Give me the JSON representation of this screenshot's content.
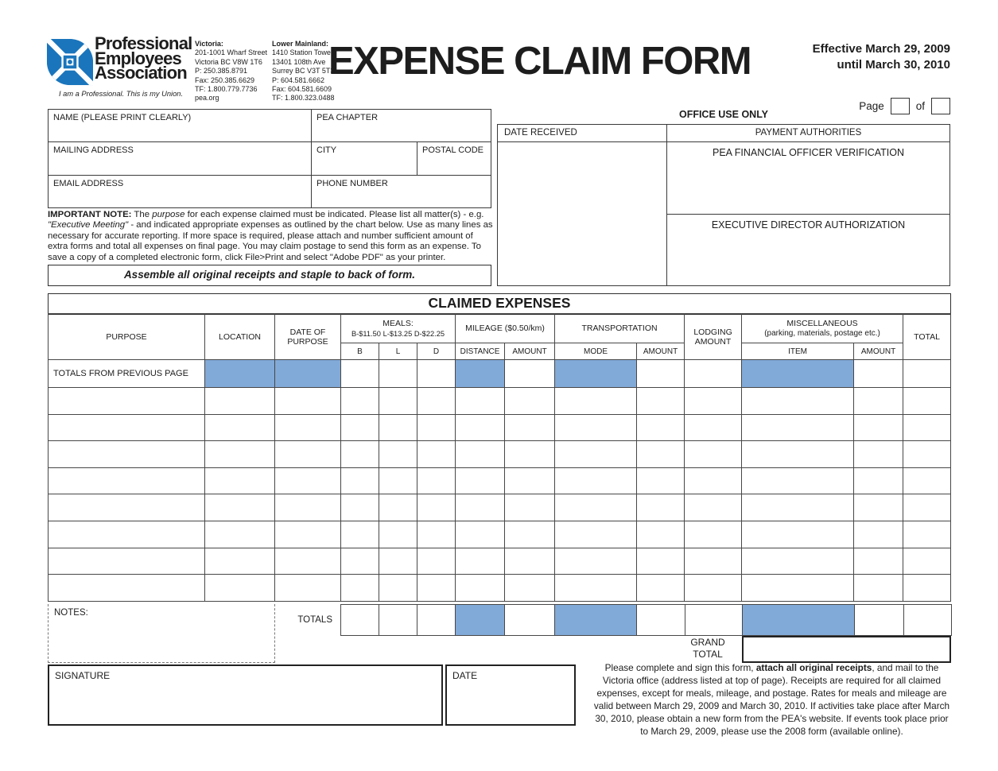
{
  "colors": {
    "cell_blue": "#82aad8",
    "brand_blue": "#1a75bc"
  },
  "logo": {
    "org_lines": [
      "Professional",
      "Employees",
      "Association"
    ],
    "tagline": "I am a Professional. This is my Union."
  },
  "contacts": {
    "victoria": {
      "title": "Victoria:",
      "lines": [
        "201-1001 Wharf Street",
        "Victoria BC V8W 1T6",
        "P: 250.385.8791",
        "Fax: 250.385.6629",
        "TF: 1.800.779.7736",
        "pea.org"
      ]
    },
    "lower_mainland": {
      "title": "Lower Mainland:",
      "lines": [
        "1410 Station Tower",
        "13401 108th Ave",
        "Surrey BC V3T 5T3",
        "P: 604.581.6662",
        "Fax: 604.581.6609",
        "TF: 1.800.323.0488"
      ]
    }
  },
  "header": {
    "title": "EXPENSE CLAIM FORM",
    "effective_line1": "Effective March 29, 2009",
    "effective_line2": "until March 30, 2010",
    "page_label": "Page",
    "of_label": "of"
  },
  "claimant": {
    "name": "NAME (PLEASE PRINT CLEARLY)",
    "pea_chapter": "PEA CHAPTER",
    "mailing_address": "MAILING ADDRESS",
    "city": "CITY",
    "postal_code": "POSTAL CODE",
    "email": "EMAIL ADDRESS",
    "phone": "PHONE NUMBER"
  },
  "office": {
    "title": "OFFICE USE ONLY",
    "date_received": "DATE RECEIVED",
    "payment_authorities": "PAYMENT AUTHORITIES",
    "financial_officer": "PEA FINANCIAL OFFICER VERIFICATION",
    "executive_director": "EXECUTIVE DIRECTOR AUTHORIZATION"
  },
  "note": {
    "b1": "IMPORTANT NOTE:",
    "t1": " The ",
    "i1": "purpose",
    "t2": " for each expense claimed must be indicated. Please list all matter(s) - e.g. ",
    "i2": "\"Executive Meeting\"",
    "t3": " - and indicated appropriate expenses as outlined by the chart below. Use as many lines as necessary for accurate reporting. If more space is required, please attach and number sufficient amount of extra forms and total all expenses on final page. You may claim postage to send this form as an expense. To save a copy of a completed electronic form, click File>Print and select \"Adobe PDF\" as your printer."
  },
  "assemble_notice": "Assemble all original receipts and staple to back of form.",
  "table": {
    "title": "CLAIMED EXPENSES",
    "col_purpose": "PURPOSE",
    "col_location": "LOCATION",
    "col_date": "DATE OF PURPOSE",
    "meals_line1": "MEALS:",
    "meals_line2": "B-$11.50 L-$13.25 D-$22.25",
    "col_mileage": "MILEAGE ($0.50/km)",
    "col_transportation": "TRANSPORTATION",
    "col_lodging": "LODGING AMOUNT",
    "misc_line1": "MISCELLANEOUS",
    "misc_line2": "(parking, materials, postage etc.)",
    "col_total": "TOTAL",
    "sub": {
      "b": "B",
      "l": "L",
      "d": "D",
      "distance": "DISTANCE",
      "amount": "AMOUNT",
      "mode": "MODE",
      "item": "ITEM"
    },
    "totals_prev_label": "TOTALS FROM PREVIOUS PAGE",
    "empty_row_count": 8,
    "notes_label": "NOTES:",
    "totals_label": "TOTALS",
    "grand_total_label": "GRAND TOTAL"
  },
  "signature": {
    "signature_label": "SIGNATURE",
    "date_label": "DATE"
  },
  "footer": {
    "t1": "Please complete and sign this form, ",
    "b1": "attach all original receipts",
    "t2": ", and mail to the Victoria office (address listed at top of page). Receipts are required for all claimed expenses, except for meals, mileage, and postage. Rates for meals and mileage are valid between  March 29, 2009 and March 30, 2010. If activities take place after March 30, 2010, please obtain a new form from the PEA's website. If events took place prior to March 29, 2009, please use the 2008 form (available online)."
  }
}
